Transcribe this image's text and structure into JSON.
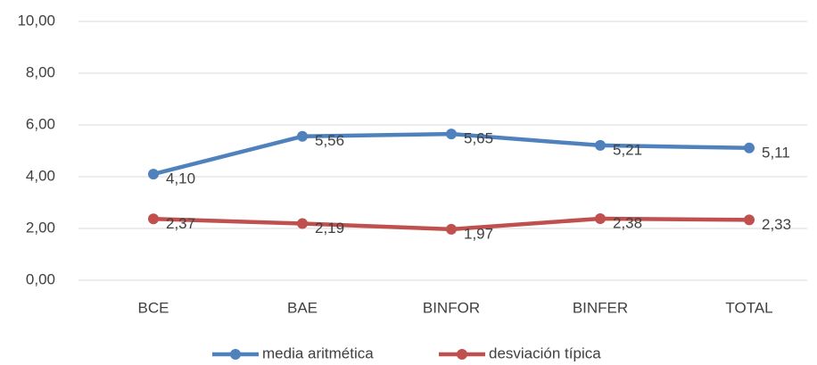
{
  "chart_data": {
    "type": "line",
    "categories": [
      "BCE",
      "BAE",
      "BINFOR",
      "BINFER",
      "TOTAL"
    ],
    "series": [
      {
        "name": "media aritmética",
        "color": "#4f81bd",
        "values": [
          4.1,
          5.56,
          5.65,
          5.21,
          5.11
        ],
        "value_labels": [
          "4,10",
          "5,56",
          "5,65",
          "5,21",
          "5,11"
        ]
      },
      {
        "name": "desviación típica",
        "color": "#c0504d",
        "values": [
          2.37,
          2.19,
          1.97,
          2.38,
          2.33
        ],
        "value_labels": [
          "2,37",
          "2,19",
          "1,97",
          "2,38",
          "2,33"
        ]
      }
    ],
    "ylim": [
      0,
      10
    ],
    "yticks": [
      {
        "value": 0,
        "label": "0,00"
      },
      {
        "value": 2,
        "label": "2,00"
      },
      {
        "value": 4,
        "label": "4,00"
      },
      {
        "value": 6,
        "label": "6,00"
      },
      {
        "value": 8,
        "label": "8,00"
      },
      {
        "value": 10,
        "label": "10,00"
      }
    ],
    "grid": true,
    "legend": "bottom"
  }
}
